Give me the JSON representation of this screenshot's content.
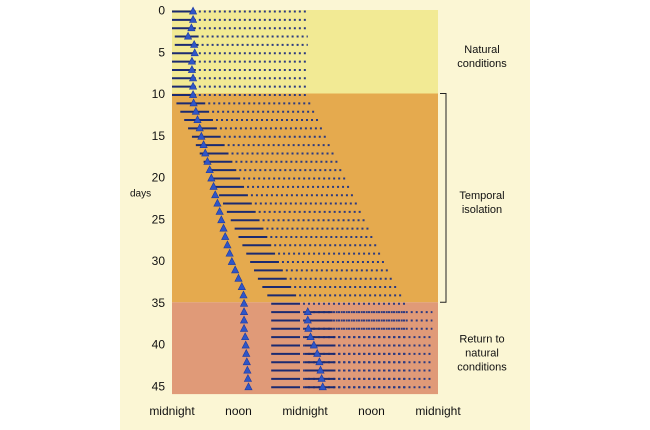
{
  "chart_data": {
    "type": "scatter",
    "title": "",
    "ylabel": "days",
    "xlabel": "",
    "x_tick_labels": [
      "midnight",
      "noon",
      "midnight",
      "noon",
      "midnight"
    ],
    "x_tick_values_hours": [
      0,
      12,
      24,
      36,
      48
    ],
    "xlim_hours": [
      0,
      48
    ],
    "ylim_days": [
      0,
      46
    ],
    "y_ticks": [
      0,
      5,
      10,
      15,
      20,
      25,
      30,
      35,
      40,
      45
    ],
    "y_inverted": true,
    "regions": [
      {
        "label": "Natural conditions",
        "from_day": 0,
        "to_day": 10,
        "color": "#f2ea94"
      },
      {
        "label": "Temporal isolation",
        "from_day": 10,
        "to_day": 35,
        "color": "#e5aa4e"
      },
      {
        "label": "Return to natural conditions",
        "from_day": 35,
        "to_day": 46,
        "color": "#e09a78"
      }
    ],
    "colors": {
      "solid_sleep": "#1b2a70",
      "dotted_sleep": "#2b3a80",
      "marker": "#2f56c8"
    },
    "series": [
      {
        "name": "",
        "kind": "solid-bar-start_hour",
        "values": [
          0,
          0,
          0,
          0.5,
          0.5,
          0,
          0,
          0,
          0,
          0,
          0,
          0.8,
          1.5,
          2.2,
          2.9,
          3.6,
          4.3,
          5.0,
          5.7,
          6.4,
          7.1,
          7.8,
          8.5,
          9.2,
          9.9,
          10.6,
          11.3,
          12.0,
          12.7,
          13.4,
          14.1,
          14.8,
          15.5,
          16.3,
          17.2,
          17.9,
          17.9,
          17.9,
          17.9,
          17.9,
          17.9,
          17.9,
          17.9,
          17.9,
          17.9,
          17.9
        ]
      },
      {
        "name": "",
        "kind": "solid-bar-end_hour",
        "values": [
          4.3,
          4.3,
          4.3,
          4.8,
          4.8,
          4.3,
          4.3,
          4.3,
          4.3,
          4.3,
          4.3,
          6.0,
          6.7,
          7.4,
          8.1,
          8.8,
          9.5,
          10.2,
          10.9,
          11.6,
          12.3,
          13.0,
          13.7,
          14.4,
          15.1,
          15.8,
          16.5,
          17.2,
          17.9,
          18.6,
          19.3,
          20.0,
          20.7,
          21.5,
          22.4,
          23.1,
          23.1,
          23.1,
          23.1,
          23.1,
          23.1,
          23.1,
          23.1,
          23.1,
          23.1,
          23.1
        ]
      },
      {
        "name": "",
        "kind": "marker_hour",
        "values": [
          3.8,
          3.8,
          3.5,
          2.9,
          4.0,
          4.1,
          3.6,
          3.6,
          3.8,
          3.8,
          3.8,
          3.9,
          4.3,
          4.6,
          5.0,
          5.3,
          5.7,
          6.0,
          6.4,
          6.8,
          7.1,
          7.5,
          7.8,
          8.2,
          8.6,
          8.9,
          9.3,
          9.6,
          10.0,
          10.4,
          10.8,
          11.4,
          12.0,
          12.6,
          12.9,
          13.0,
          13.0,
          13.0,
          13.0,
          13.2,
          13.3,
          13.4,
          13.5,
          13.6,
          13.7,
          13.8
        ]
      },
      {
        "name": "",
        "kind": "dotted-bar-end_hour",
        "values": [
          24.5,
          24.5,
          24.5,
          24.5,
          24.5,
          24.5,
          24.5,
          24.5,
          24.5,
          24.5,
          24.5,
          25.2,
          25.9,
          26.6,
          27.3,
          28.0,
          28.7,
          29.4,
          30.1,
          30.8,
          31.5,
          32.2,
          32.9,
          33.6,
          34.3,
          35.0,
          35.7,
          36.4,
          37.1,
          37.8,
          38.5,
          39.2,
          39.9,
          40.7,
          41.6,
          42.3,
          42.3,
          42.3,
          42.3,
          42.3,
          42.3,
          42.3,
          42.3,
          42.3,
          42.3,
          42.3
        ]
      },
      {
        "name": "",
        "kind": "solid-bar2-start_hour",
        "values": [
          null,
          null,
          null,
          null,
          null,
          null,
          null,
          null,
          null,
          null,
          null,
          null,
          null,
          null,
          null,
          null,
          null,
          null,
          null,
          null,
          null,
          null,
          null,
          null,
          null,
          null,
          null,
          null,
          null,
          null,
          null,
          null,
          null,
          null,
          null,
          null,
          24.0,
          24.0,
          24.0,
          24.0,
          24.0,
          24.0,
          24.0,
          24.0,
          24.0,
          24.0
        ]
      },
      {
        "name": "",
        "kind": "solid-bar2-end_hour",
        "values": [
          null,
          null,
          null,
          null,
          null,
          null,
          null,
          null,
          null,
          null,
          null,
          null,
          null,
          null,
          null,
          null,
          null,
          null,
          null,
          null,
          null,
          null,
          null,
          null,
          null,
          null,
          null,
          null,
          null,
          null,
          null,
          null,
          null,
          null,
          null,
          null,
          29.0,
          29.0,
          29.0,
          29.5,
          29.5,
          29.5,
          29.5,
          29.5,
          29.5,
          29.5
        ]
      },
      {
        "name": "",
        "kind": "marker2_hour",
        "values": [
          null,
          null,
          null,
          null,
          null,
          null,
          null,
          null,
          null,
          null,
          null,
          null,
          null,
          null,
          null,
          null,
          null,
          null,
          null,
          null,
          null,
          null,
          null,
          null,
          null,
          null,
          null,
          null,
          null,
          null,
          null,
          null,
          null,
          null,
          null,
          null,
          24.5,
          24.5,
          24.6,
          25.0,
          25.6,
          26.2,
          26.6,
          26.8,
          27.0,
          27.2
        ]
      },
      {
        "name": "",
        "kind": "dotted-bar2-end_hour",
        "values": [
          null,
          null,
          null,
          null,
          null,
          null,
          null,
          null,
          null,
          null,
          null,
          null,
          null,
          null,
          null,
          null,
          null,
          null,
          null,
          null,
          null,
          null,
          null,
          null,
          null,
          null,
          null,
          null,
          null,
          null,
          null,
          null,
          null,
          null,
          null,
          null,
          47.0,
          47.0,
          47.0,
          47.0,
          47.0,
          47.0,
          47.0,
          47.0,
          47.0,
          47.0
        ]
      }
    ]
  }
}
